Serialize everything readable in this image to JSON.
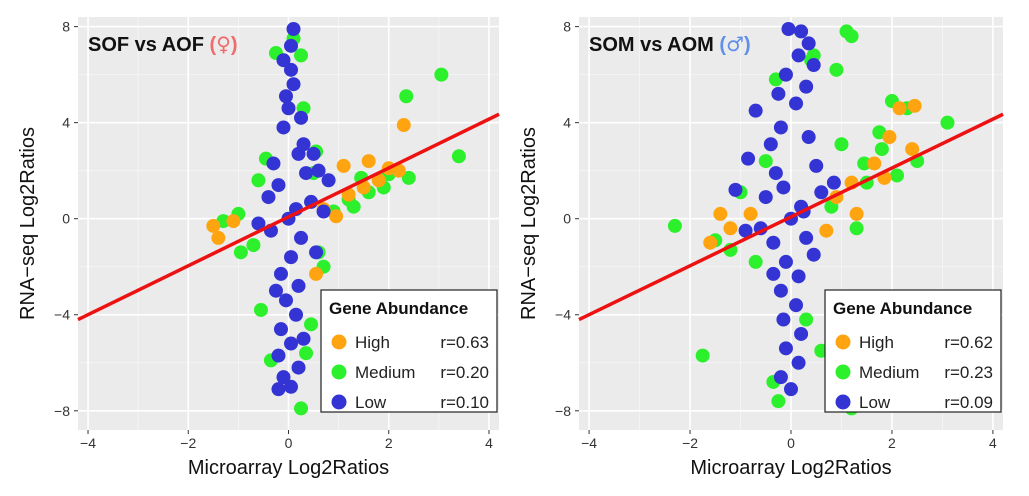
{
  "chart_data": [
    {
      "type": "scatter",
      "title": "SOF vs AOF",
      "symbol": "♀",
      "symbol_color": "#f26b6b",
      "xlabel": "Microarray Log2Ratios",
      "ylabel": "RNA−seq Log2Ratios",
      "xlim": [
        -4.2,
        4.2
      ],
      "ylim": [
        -8.8,
        8.4
      ],
      "x_ticks": [
        -4,
        -2,
        0,
        2,
        4
      ],
      "y_ticks": [
        -8,
        -4,
        0,
        4,
        8
      ],
      "x_tick_labels": [
        "−4",
        "−2",
        "0",
        "2",
        "4"
      ],
      "y_tick_labels": [
        "−8",
        "−4",
        "0",
        "4",
        "8"
      ],
      "grid": true,
      "fit_line": {
        "color": "#ee1111",
        "points": [
          [
            -4.2,
            -4.2
          ],
          [
            4.2,
            4.35
          ]
        ]
      },
      "legend": {
        "title": "Gene Abundance",
        "position": "bottom-right",
        "items": [
          {
            "label": "High",
            "r": "r=0.63",
            "color": "#ffa411"
          },
          {
            "label": "Medium",
            "r": "r=0.20",
            "color": "#2cf02c"
          },
          {
            "label": "Low",
            "r": "r=0.10",
            "color": "#3434d4"
          }
        ]
      },
      "series": [
        {
          "name": "Medium",
          "color": "#2cf02c",
          "points": [
            [
              3.05,
              6.0
            ],
            [
              2.35,
              5.1
            ],
            [
              3.4,
              2.6
            ],
            [
              2.4,
              1.7
            ],
            [
              1.9,
              1.3
            ],
            [
              1.6,
              1.1
            ],
            [
              -1.3,
              -0.1
            ],
            [
              -1.0,
              0.2
            ],
            [
              -0.7,
              -1.1
            ],
            [
              -0.95,
              -1.4
            ],
            [
              0.6,
              -1.4
            ],
            [
              0.9,
              0.3
            ],
            [
              1.2,
              0.8
            ],
            [
              0.35,
              -5.6
            ],
            [
              0.25,
              -7.9
            ],
            [
              -0.35,
              -5.9
            ],
            [
              0.1,
              7.5
            ],
            [
              0.25,
              6.8
            ],
            [
              -0.25,
              6.9
            ],
            [
              0.3,
              4.6
            ],
            [
              0.55,
              2.8
            ],
            [
              0.5,
              1.9
            ],
            [
              -0.6,
              1.6
            ],
            [
              0.7,
              -2.0
            ],
            [
              -0.55,
              -3.8
            ],
            [
              0.45,
              -4.4
            ],
            [
              1.45,
              1.7
            ],
            [
              2.0,
              1.85
            ],
            [
              1.3,
              0.5
            ],
            [
              -0.45,
              2.5
            ]
          ]
        },
        {
          "name": "High",
          "color": "#ffa411",
          "points": [
            [
              2.3,
              3.9
            ],
            [
              1.1,
              2.2
            ],
            [
              1.5,
              1.3
            ],
            [
              1.8,
              1.6
            ],
            [
              2.0,
              2.1
            ],
            [
              -1.5,
              -0.3
            ],
            [
              -1.4,
              -0.8
            ],
            [
              -1.1,
              -0.1
            ],
            [
              0.55,
              -2.3
            ],
            [
              0.7,
              0.4
            ],
            [
              0.95,
              0.1
            ],
            [
              1.2,
              1.0
            ],
            [
              2.2,
              2.0
            ],
            [
              1.6,
              2.4
            ]
          ]
        },
        {
          "name": "Low",
          "color": "#3434d4",
          "points": [
            [
              0.1,
              7.9
            ],
            [
              0.05,
              7.2
            ],
            [
              -0.1,
              6.6
            ],
            [
              0.05,
              6.2
            ],
            [
              0.1,
              5.6
            ],
            [
              -0.05,
              5.1
            ],
            [
              0.0,
              4.6
            ],
            [
              0.25,
              4.2
            ],
            [
              -0.1,
              3.8
            ],
            [
              0.3,
              3.1
            ],
            [
              0.2,
              2.7
            ],
            [
              -0.3,
              2.3
            ],
            [
              0.5,
              2.7
            ],
            [
              0.35,
              1.9
            ],
            [
              0.8,
              1.6
            ],
            [
              0.6,
              2.0
            ],
            [
              -0.4,
              0.9
            ],
            [
              0.45,
              0.7
            ],
            [
              0.7,
              0.3
            ],
            [
              -0.6,
              -0.2
            ],
            [
              -0.35,
              -0.5
            ],
            [
              0.25,
              -0.8
            ],
            [
              0.05,
              -1.6
            ],
            [
              -0.15,
              -2.3
            ],
            [
              0.2,
              -2.8
            ],
            [
              -0.05,
              -3.4
            ],
            [
              0.15,
              -4.0
            ],
            [
              -0.15,
              -4.6
            ],
            [
              0.05,
              -5.2
            ],
            [
              -0.2,
              -5.7
            ],
            [
              0.2,
              -6.2
            ],
            [
              -0.1,
              -6.6
            ],
            [
              0.05,
              -7.0
            ],
            [
              -0.2,
              -7.1
            ],
            [
              0.3,
              -5.0
            ],
            [
              -0.25,
              -3.0
            ],
            [
              0.55,
              -1.4
            ],
            [
              0.0,
              0.0
            ],
            [
              0.15,
              0.4
            ],
            [
              -0.2,
              1.4
            ]
          ]
        }
      ]
    },
    {
      "type": "scatter",
      "title": "SOM vs AOM",
      "symbol": "♂",
      "symbol_color": "#5f8fe8",
      "xlabel": "Microarray Log2Ratios",
      "ylabel": "RNA−seq Log2Ratios",
      "xlim": [
        -4.2,
        4.2
      ],
      "ylim": [
        -8.8,
        8.4
      ],
      "x_ticks": [
        -4,
        -2,
        0,
        2,
        4
      ],
      "y_ticks": [
        -8,
        -4,
        0,
        4,
        8
      ],
      "x_tick_labels": [
        "−4",
        "−2",
        "0",
        "2",
        "4"
      ],
      "y_tick_labels": [
        "−8",
        "−4",
        "0",
        "4",
        "8"
      ],
      "grid": true,
      "fit_line": {
        "color": "#ee1111",
        "points": [
          [
            -4.2,
            -4.2
          ],
          [
            4.2,
            4.35
          ]
        ]
      },
      "legend": {
        "title": "Gene Abundance",
        "position": "bottom-right",
        "items": [
          {
            "label": "High",
            "r": "r=0.62",
            "color": "#ffa411"
          },
          {
            "label": "Medium",
            "r": "r=0.23",
            "color": "#2cf02c"
          },
          {
            "label": "Low",
            "r": "r=0.09",
            "color": "#3434d4"
          }
        ]
      },
      "series": [
        {
          "name": "Medium",
          "color": "#2cf02c",
          "points": [
            [
              1.1,
              7.8
            ],
            [
              1.2,
              7.6
            ],
            [
              0.9,
              6.2
            ],
            [
              0.45,
              6.8
            ],
            [
              2.0,
              4.9
            ],
            [
              3.1,
              4.0
            ],
            [
              2.3,
              4.6
            ],
            [
              1.75,
              3.6
            ],
            [
              -2.3,
              -0.3
            ],
            [
              -1.75,
              -5.7
            ],
            [
              -1.5,
              -0.9
            ],
            [
              -1.2,
              -1.3
            ],
            [
              -1.0,
              1.1
            ],
            [
              -0.5,
              2.4
            ],
            [
              1.2,
              -7.9
            ],
            [
              -0.25,
              -7.6
            ],
            [
              0.6,
              -5.5
            ],
            [
              1.3,
              -0.4
            ],
            [
              1.5,
              1.5
            ],
            [
              2.1,
              1.8
            ],
            [
              2.5,
              2.4
            ],
            [
              0.8,
              0.5
            ],
            [
              1.45,
              2.3
            ],
            [
              -0.7,
              -1.8
            ],
            [
              0.3,
              -4.2
            ],
            [
              -0.35,
              -6.8
            ],
            [
              0.4,
              6.6
            ],
            [
              -0.3,
              5.8
            ],
            [
              1.0,
              3.1
            ],
            [
              1.8,
              2.9
            ]
          ]
        },
        {
          "name": "High",
          "color": "#ffa411",
          "points": [
            [
              2.45,
              4.7
            ],
            [
              2.15,
              4.6
            ],
            [
              1.95,
              3.4
            ],
            [
              2.4,
              2.9
            ],
            [
              1.85,
              1.7
            ],
            [
              -1.6,
              -1.0
            ],
            [
              -1.2,
              -0.4
            ],
            [
              -0.8,
              0.2
            ],
            [
              -1.4,
              0.2
            ],
            [
              0.9,
              0.9
            ],
            [
              1.2,
              1.5
            ],
            [
              1.65,
              2.3
            ],
            [
              0.7,
              -0.5
            ],
            [
              1.3,
              0.2
            ]
          ]
        },
        {
          "name": "Low",
          "color": "#3434d4",
          "points": [
            [
              -0.05,
              7.9
            ],
            [
              0.2,
              7.8
            ],
            [
              0.35,
              7.3
            ],
            [
              0.15,
              6.8
            ],
            [
              0.45,
              6.4
            ],
            [
              -0.1,
              6.0
            ],
            [
              0.3,
              5.5
            ],
            [
              -0.25,
              5.2
            ],
            [
              0.1,
              4.8
            ],
            [
              -0.7,
              4.5
            ],
            [
              -0.2,
              3.8
            ],
            [
              0.35,
              3.4
            ],
            [
              -0.4,
              3.1
            ],
            [
              -0.85,
              2.5
            ],
            [
              0.5,
              2.2
            ],
            [
              -0.3,
              1.9
            ],
            [
              -1.1,
              1.2
            ],
            [
              -0.5,
              0.9
            ],
            [
              0.6,
              1.1
            ],
            [
              0.85,
              1.5
            ],
            [
              0.2,
              0.5
            ],
            [
              -0.6,
              -0.4
            ],
            [
              -0.9,
              -0.5
            ],
            [
              -0.35,
              -1.0
            ],
            [
              0.3,
              -0.8
            ],
            [
              -0.1,
              -1.8
            ],
            [
              0.15,
              -2.4
            ],
            [
              -0.2,
              -3.0
            ],
            [
              0.1,
              -3.6
            ],
            [
              -0.15,
              -4.2
            ],
            [
              0.2,
              -4.8
            ],
            [
              -0.1,
              -5.4
            ],
            [
              0.15,
              -6.0
            ],
            [
              -0.2,
              -6.6
            ],
            [
              0.0,
              -7.1
            ],
            [
              -0.35,
              -2.3
            ],
            [
              0.45,
              -1.5
            ],
            [
              0.0,
              0.0
            ],
            [
              0.25,
              0.3
            ],
            [
              -0.15,
              1.3
            ]
          ]
        }
      ]
    }
  ]
}
